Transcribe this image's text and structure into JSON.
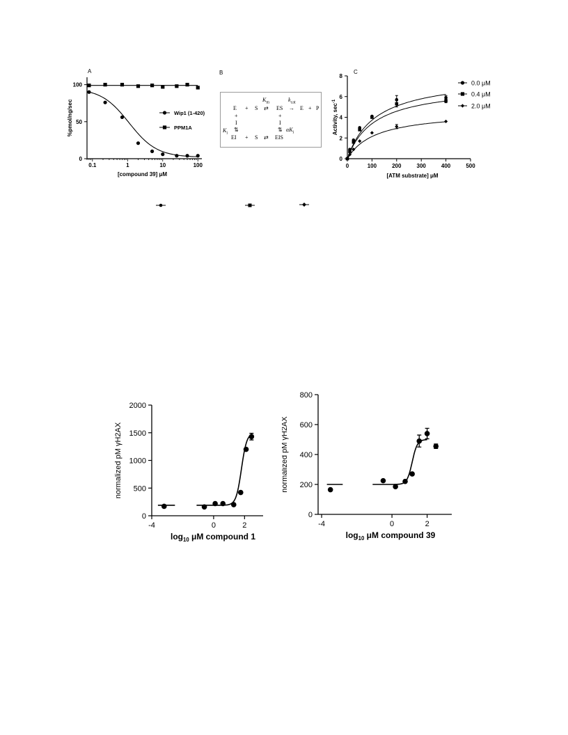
{
  "panels": {
    "a": "A",
    "b": "B",
    "c": "C"
  },
  "scheme": {
    "row1": [
      "E",
      "+",
      "S",
      "⇄",
      "ES",
      "→",
      "E",
      "+",
      "P"
    ],
    "plus": "+",
    "inh": "I",
    "eq": "⇅",
    "row3": [
      "EI",
      "+",
      "S",
      "⇄",
      "EIS"
    ],
    "km": "K",
    "km_sub": "m",
    "kcat": "k",
    "kcat_sub": "cat",
    "ki": "K",
    "ki_sub": "i",
    "aki": "αK",
    "aki_sub": "i"
  },
  "chart_data": [
    {
      "type": "scatter",
      "xlabel": "[compound 39] μM",
      "ylabel": "%pmol/ng/sec",
      "xscale": "log",
      "xlim": [
        0.07,
        130
      ],
      "ylim": [
        0,
        110
      ],
      "xticks": [
        "0.1",
        "1",
        "10",
        "100"
      ],
      "yticks": [
        "0",
        "50",
        "100"
      ],
      "legend_position": "right",
      "series": [
        {
          "name": "Wip1 (1-420)",
          "marker": "circle",
          "x": [
            0.08,
            0.23,
            0.7,
            2,
            5,
            10,
            25,
            50,
            100
          ],
          "y": [
            90,
            76,
            56,
            21,
            10,
            6,
            4,
            4,
            4
          ],
          "fit": {
            "top": 95,
            "bottom": 2,
            "ic50": 1.1,
            "hill": 1.1
          }
        },
        {
          "name": "PPM1A",
          "marker": "square",
          "x": [
            0.08,
            0.23,
            0.7,
            2,
            5,
            10,
            25,
            50,
            100
          ],
          "y": [
            99,
            100,
            100,
            98,
            99,
            97,
            98,
            100,
            96
          ],
          "fit": {
            "flat": 99
          }
        }
      ]
    },
    {
      "type": "scatter",
      "xlabel": "[ATM substrate] μM",
      "ylabel": "Activity, sec",
      "ylabel_sup": "-1",
      "xlim": [
        0,
        500
      ],
      "ylim": [
        0,
        8
      ],
      "xticks": [
        "0",
        "100",
        "200",
        "300",
        "400",
        "500"
      ],
      "yticks": [
        "0",
        "2",
        "4",
        "6",
        "8"
      ],
      "legend_position": "top-right",
      "series": [
        {
          "name": "0.0 μM",
          "marker": "circle",
          "x": [
            0,
            10,
            25,
            50,
            100,
            200,
            400
          ],
          "y": [
            0,
            0.9,
            1.8,
            3.0,
            4.1,
            5.7,
            5.9
          ],
          "err": [
            0,
            0,
            0,
            0,
            0,
            0.4,
            0.2
          ],
          "fit": {
            "vmax": 8.0,
            "km": 115
          }
        },
        {
          "name": "0.4 μM",
          "marker": "square",
          "x": [
            0,
            10,
            25,
            50,
            100,
            200,
            400
          ],
          "y": [
            0,
            0.7,
            1.6,
            2.8,
            4.0,
            5.3,
            5.6
          ],
          "err": [
            0,
            0,
            0,
            0,
            0,
            0.3,
            0.2
          ],
          "fit": {
            "vmax": 7.1,
            "km": 110
          }
        },
        {
          "name": "2.0 μM",
          "marker": "diamond",
          "x": [
            0,
            10,
            25,
            50,
            100,
            200,
            400
          ],
          "y": [
            0,
            0.4,
            0.9,
            1.7,
            2.5,
            3.1,
            3.6
          ],
          "err": [
            0,
            0,
            0,
            0,
            0,
            0.2,
            0
          ],
          "fit": {
            "vmax": 4.6,
            "km": 115
          }
        }
      ]
    },
    {
      "type": "scatter",
      "xlabel_pre": "log",
      "xlabel_sub": "10",
      "xlabel_post": " μM compound 1",
      "ylabel": "normalized pM γH2AX",
      "xlim": [
        -4,
        3.2
      ],
      "ylim": [
        0,
        2000
      ],
      "xticks": [
        "-4",
        "0",
        "2"
      ],
      "yticks": [
        "0",
        "500",
        "1000",
        "1500",
        "2000"
      ],
      "series": [
        {
          "name": "",
          "marker": "circle",
          "x": [
            -3.2,
            -0.6,
            0.1,
            0.6,
            1.3,
            1.75,
            2.1,
            2.45
          ],
          "y": [
            170,
            160,
            220,
            220,
            200,
            420,
            1200,
            1430
          ],
          "err": [
            0,
            0,
            0,
            0,
            0,
            0,
            0,
            60
          ],
          "control_line": {
            "x": [
              -3.6,
              -2.5
            ],
            "y": 190
          },
          "fit": {
            "bottom": 190,
            "top": 1500,
            "logec50": 1.8,
            "hill": 2.5,
            "xrange": [
              -1.1,
              2.5
            ]
          }
        }
      ]
    },
    {
      "type": "scatter",
      "xlabel_pre": "log",
      "xlabel_sub": "10",
      "xlabel_post": " μM compound 39",
      "ylabel": "normalized pM γH2AX",
      "xlim": [
        -4.2,
        3.4
      ],
      "ylim": [
        0,
        800
      ],
      "xticks": [
        "-4",
        "0",
        "2"
      ],
      "yticks": [
        "0",
        "200",
        "400",
        "600",
        "800"
      ],
      "series": [
        {
          "name": "",
          "marker": "circle",
          "x": [
            -3.5,
            -0.5,
            0.2,
            0.75,
            1.15,
            1.55,
            2.0,
            2.5
          ],
          "y": [
            165,
            225,
            185,
            220,
            270,
            490,
            540,
            455
          ],
          "err": [
            0,
            0,
            0,
            0,
            0,
            40,
            35,
            15
          ],
          "control_line": {
            "x": [
              -3.7,
              -2.8
            ],
            "y": 200
          },
          "fit": {
            "bottom": 200,
            "top": 500,
            "logec50": 1.15,
            "hill": 3,
            "xrange": [
              -1.1,
              2.0
            ]
          }
        }
      ]
    }
  ]
}
